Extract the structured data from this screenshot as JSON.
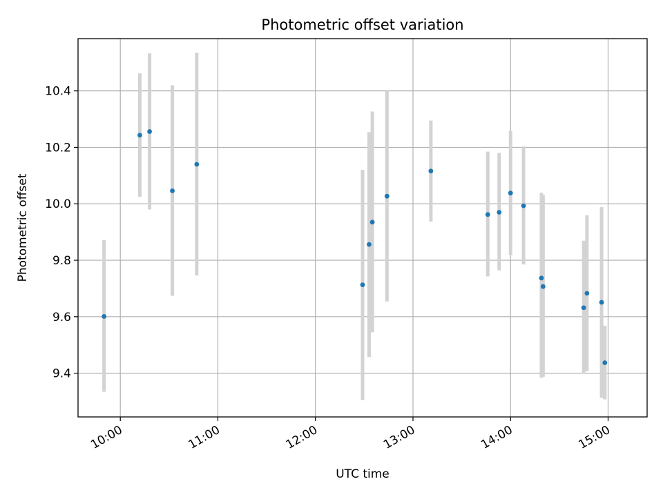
{
  "chart_data": {
    "type": "scatter",
    "title": "Photometric offset variation",
    "xlabel": "UTC time",
    "ylabel": "Photometric offset",
    "x_ticks": [
      "10:00",
      "11:00",
      "12:00",
      "13:00",
      "14:00",
      "15:00"
    ],
    "y_ticks": [
      "9.4",
      "9.6",
      "9.8",
      "10.0",
      "10.2",
      "10.4"
    ],
    "xlim": [
      "09:34",
      "15:24"
    ],
    "ylim": [
      9.245,
      10.585
    ],
    "grid": true,
    "colors": {
      "point": "#1f77b4",
      "errorbar": "#d3d3d3",
      "grid": "#b0b0b0"
    },
    "points": [
      {
        "x": "09:50",
        "y": 9.601,
        "ylow": 9.334,
        "yhigh": 9.872
      },
      {
        "x": "10:12",
        "y": 10.243,
        "ylow": 10.025,
        "yhigh": 10.462
      },
      {
        "x": "10:18",
        "y": 10.256,
        "ylow": 9.98,
        "yhigh": 10.533
      },
      {
        "x": "10:32",
        "y": 10.046,
        "ylow": 9.674,
        "yhigh": 10.42
      },
      {
        "x": "10:47",
        "y": 10.14,
        "ylow": 9.746,
        "yhigh": 10.535
      },
      {
        "x": "12:29",
        "y": 9.713,
        "ylow": 9.305,
        "yhigh": 10.12
      },
      {
        "x": "12:33",
        "y": 9.856,
        "ylow": 9.457,
        "yhigh": 10.254
      },
      {
        "x": "12:35",
        "y": 9.935,
        "ylow": 9.545,
        "yhigh": 10.327
      },
      {
        "x": "12:44",
        "y": 10.027,
        "ylow": 9.654,
        "yhigh": 10.4
      },
      {
        "x": "13:11",
        "y": 10.116,
        "ylow": 9.937,
        "yhigh": 10.295
      },
      {
        "x": "13:46",
        "y": 9.962,
        "ylow": 9.743,
        "yhigh": 10.185
      },
      {
        "x": "13:53",
        "y": 9.97,
        "ylow": 9.764,
        "yhigh": 10.18
      },
      {
        "x": "14:00",
        "y": 10.038,
        "ylow": 9.818,
        "yhigh": 10.258
      },
      {
        "x": "14:08",
        "y": 9.993,
        "ylow": 9.785,
        "yhigh": 10.203
      },
      {
        "x": "14:19",
        "y": 9.737,
        "ylow": 9.384,
        "yhigh": 10.039
      },
      {
        "x": "14:20",
        "y": 9.707,
        "ylow": 9.387,
        "yhigh": 10.031
      },
      {
        "x": "14:45",
        "y": 9.632,
        "ylow": 9.398,
        "yhigh": 9.869
      },
      {
        "x": "14:47",
        "y": 9.683,
        "ylow": 9.407,
        "yhigh": 9.959
      },
      {
        "x": "14:56",
        "y": 9.651,
        "ylow": 9.313,
        "yhigh": 9.988
      },
      {
        "x": "14:58",
        "y": 9.437,
        "ylow": 9.307,
        "yhigh": 9.568
      }
    ]
  }
}
